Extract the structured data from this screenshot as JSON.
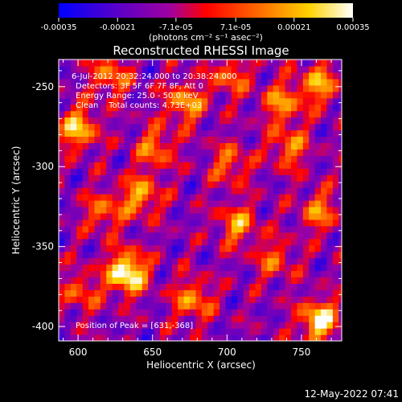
{
  "chart_data": {
    "type": "heatmap",
    "title": "Reconstructed RHESSI Image",
    "xlabel": "Heliocentric X (arcsec)",
    "ylabel": "Heliocentric Y (arcsec)",
    "xlim": [
      587,
      777
    ],
    "ylim": [
      -409,
      -233
    ],
    "x_ticks": [
      "600",
      "650",
      "700",
      "750"
    ],
    "y_ticks": [
      "-250",
      "-300",
      "-350",
      "-400"
    ],
    "colorbar": {
      "colormap": "blue-purple-red-yellow-white",
      "range": [
        -0.00035,
        0.00035
      ],
      "tick_labels": [
        "-0.00035",
        "-0.00021",
        "-7.1e-05",
        "7.1e-05",
        "0.00021",
        "0.00035"
      ],
      "unit_label": "(photons cm⁻² s⁻¹ asec⁻²)"
    },
    "annotations": [
      "6-Jul-2012 20:32:24.000 to 20:38:24.000",
      "Detectors: 3F 5F 6F 7F 8F, Att 0",
      "Energy Range: 25.0 - 50.0 keV",
      "Clean    Total counts: 4.73E+03",
      "Position of Peak = [631,-368]"
    ],
    "sources": [
      {
        "x": 631,
        "y": -368,
        "intensity": 1.0
      },
      {
        "x": 760,
        "y": -398,
        "intensity": 0.85
      },
      {
        "x": 598,
        "y": -278,
        "intensity": 0.7
      },
      {
        "x": 640,
        "y": -320,
        "intensity": 0.6
      },
      {
        "x": 670,
        "y": -262,
        "intensity": 0.6
      },
      {
        "x": 735,
        "y": -262,
        "intensity": 0.55
      },
      {
        "x": 760,
        "y": -330,
        "intensity": 0.5
      },
      {
        "x": 675,
        "y": -385,
        "intensity": 0.55
      },
      {
        "x": 705,
        "y": -338,
        "intensity": 0.55
      },
      {
        "x": 620,
        "y": -245,
        "intensity": 0.5
      },
      {
        "x": 700,
        "y": -245,
        "intensity": 0.45
      },
      {
        "x": 760,
        "y": -250,
        "intensity": 0.6
      },
      {
        "x": 650,
        "y": -290,
        "intensity": 0.5
      },
      {
        "x": 740,
        "y": -290,
        "intensity": 0.5
      },
      {
        "x": 700,
        "y": -300,
        "intensity": 0.45
      },
      {
        "x": 600,
        "y": -380,
        "intensity": 0.4
      },
      {
        "x": 730,
        "y": -360,
        "intensity": 0.4
      },
      {
        "x": 615,
        "y": -330,
        "intensity": 0.45
      }
    ]
  },
  "footer": {
    "timestamp": "12-May-2022 07:41"
  }
}
